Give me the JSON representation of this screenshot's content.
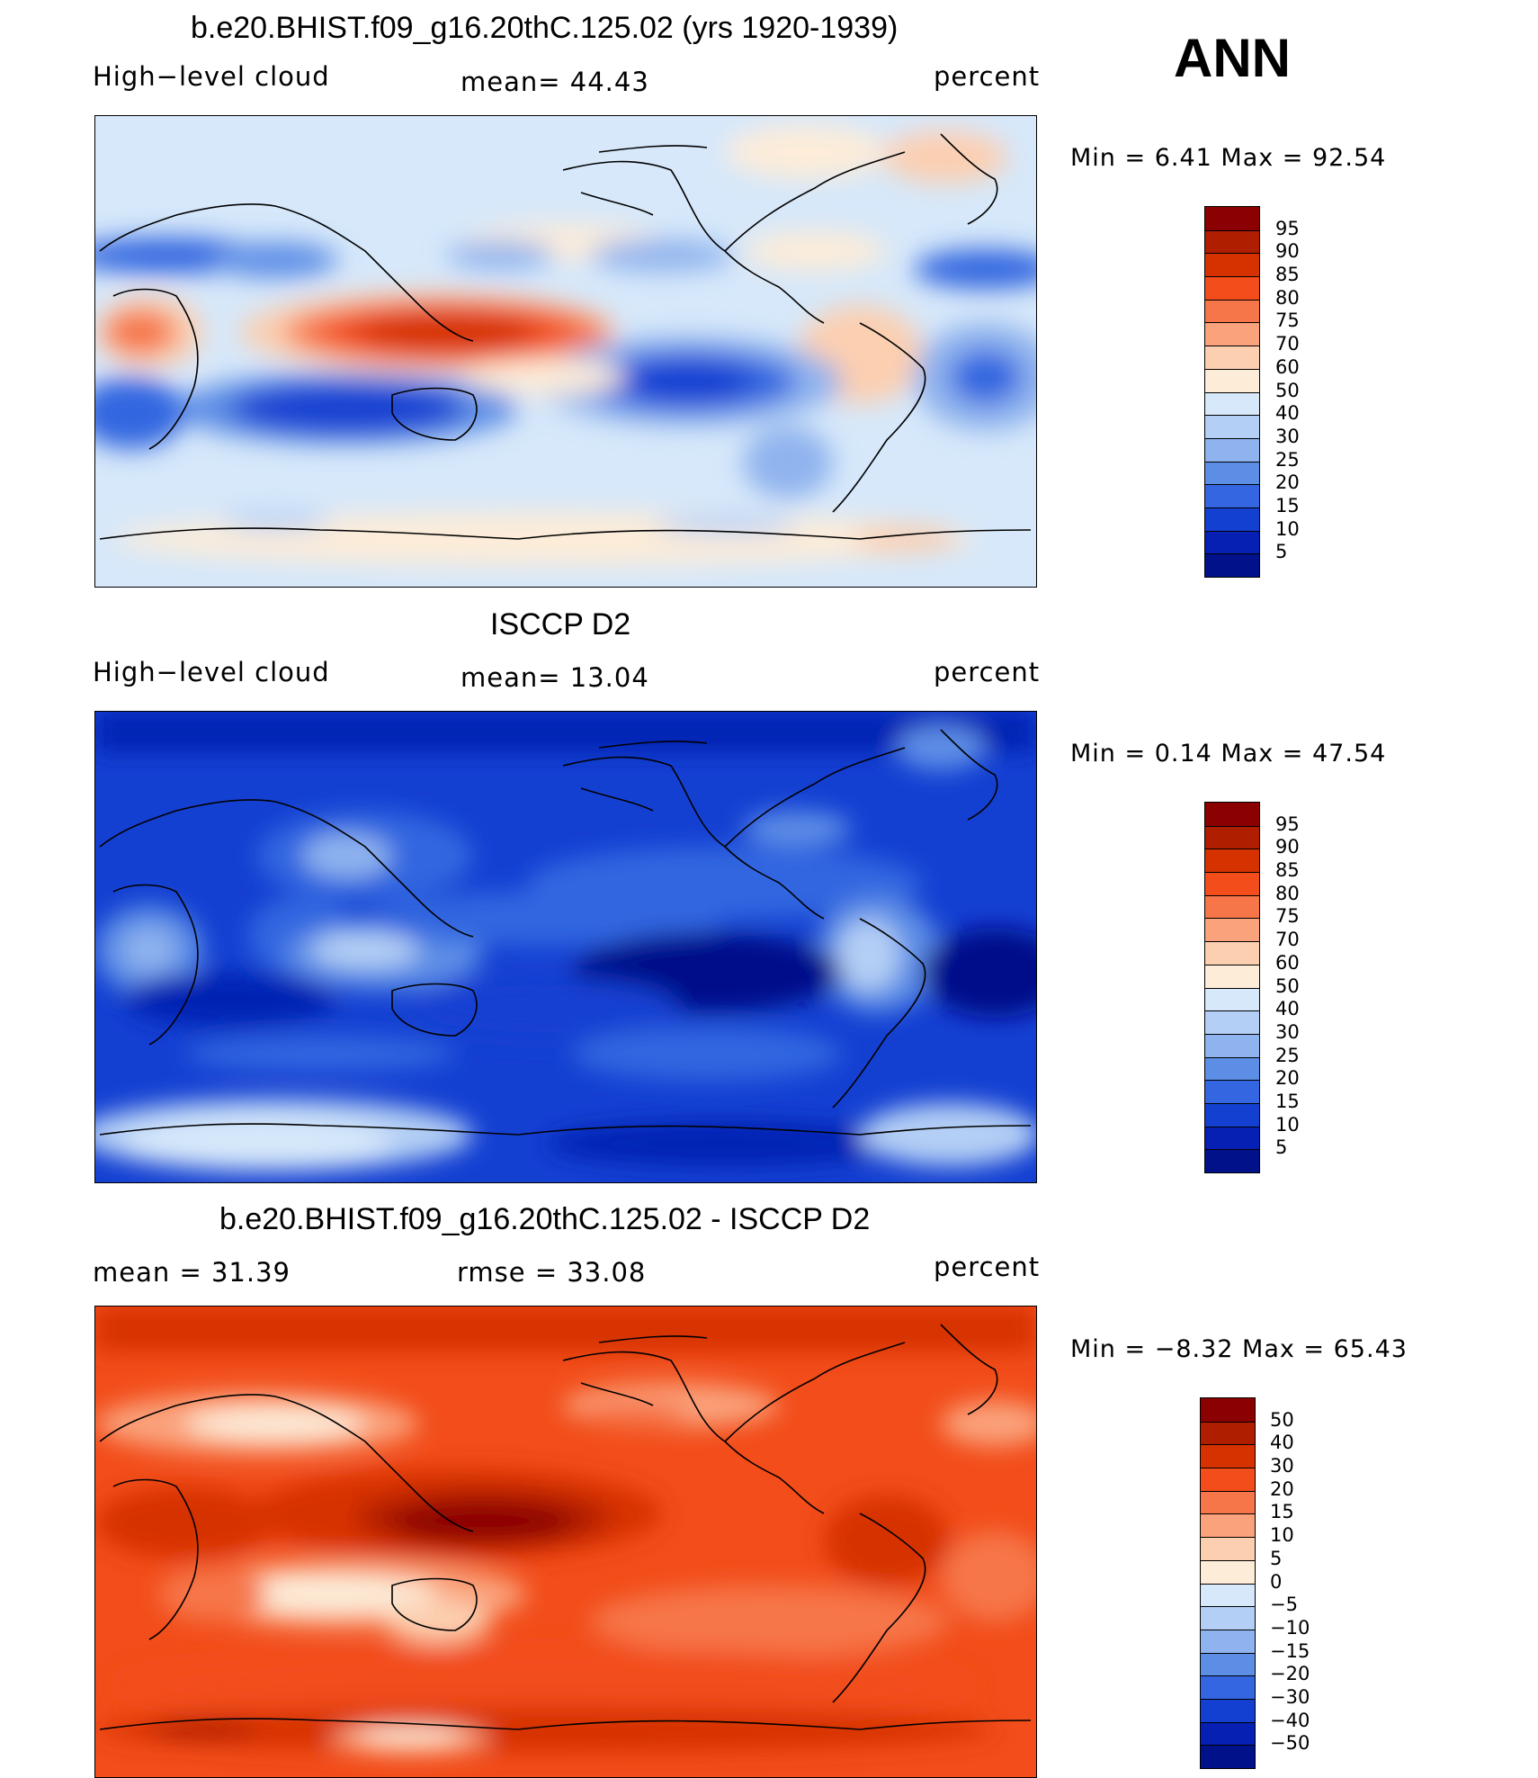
{
  "season": "ANN",
  "panels": [
    {
      "id": "model",
      "title": "b.e20.BHIST.f09_g16.20thC.125.02 (yrs 1920-1939)",
      "left_label": "High−level cloud",
      "center_label": "mean=   44.43",
      "right_label": "percent",
      "minmax": "Min =    6.41  Max =   92.54",
      "colorbar": {
        "labels": [
          "95",
          "90",
          "85",
          "80",
          "75",
          "70",
          "60",
          "50",
          "40",
          "30",
          "25",
          "20",
          "15",
          "10",
          "5"
        ],
        "colors": [
          "#8b0000",
          "#b01e00",
          "#d63200",
          "#f24d1a",
          "#f6764a",
          "#faa27c",
          "#fccfb0",
          "#fdecd8",
          "#d6e8fa",
          "#b4cff5",
          "#8fb3ee",
          "#5d8ee6",
          "#3366e0",
          "#1440d2",
          "#0520b2",
          "#00118a"
        ]
      }
    },
    {
      "id": "obs",
      "title": "ISCCP D2",
      "left_label": "High−level cloud",
      "center_label": "mean=   13.04",
      "right_label": "percent",
      "minmax": "Min =    0.14  Max =   47.54",
      "colorbar": {
        "labels": [
          "95",
          "90",
          "85",
          "80",
          "75",
          "70",
          "60",
          "50",
          "40",
          "30",
          "25",
          "20",
          "15",
          "10",
          "5"
        ],
        "colors": [
          "#8b0000",
          "#b01e00",
          "#d63200",
          "#f24d1a",
          "#f6764a",
          "#faa27c",
          "#fccfb0",
          "#fdecd8",
          "#d6e8fa",
          "#b4cff5",
          "#8fb3ee",
          "#5d8ee6",
          "#3366e0",
          "#1440d2",
          "#0520b2",
          "#00118a"
        ]
      }
    },
    {
      "id": "diff",
      "title": "b.e20.BHIST.f09_g16.20thC.125.02 - ISCCP D2",
      "left_label": "mean =    31.39",
      "center_label": "rmse =    33.08",
      "right_label": "percent",
      "minmax": "Min =  −8.32  Max =   65.43",
      "colorbar": {
        "labels": [
          "50",
          "40",
          "30",
          "20",
          "15",
          "10",
          "5",
          "0",
          "−5",
          "−10",
          "−15",
          "−20",
          "−30",
          "−40",
          "−50"
        ],
        "colors": [
          "#8b0000",
          "#b01e00",
          "#d63200",
          "#f24d1a",
          "#f6764a",
          "#faa27c",
          "#fccfb0",
          "#fdecd8",
          "#d6e8fa",
          "#b4cff5",
          "#8fb3ee",
          "#5d8ee6",
          "#3366e0",
          "#1440d2",
          "#0520b2",
          "#00118a"
        ]
      }
    }
  ]
}
